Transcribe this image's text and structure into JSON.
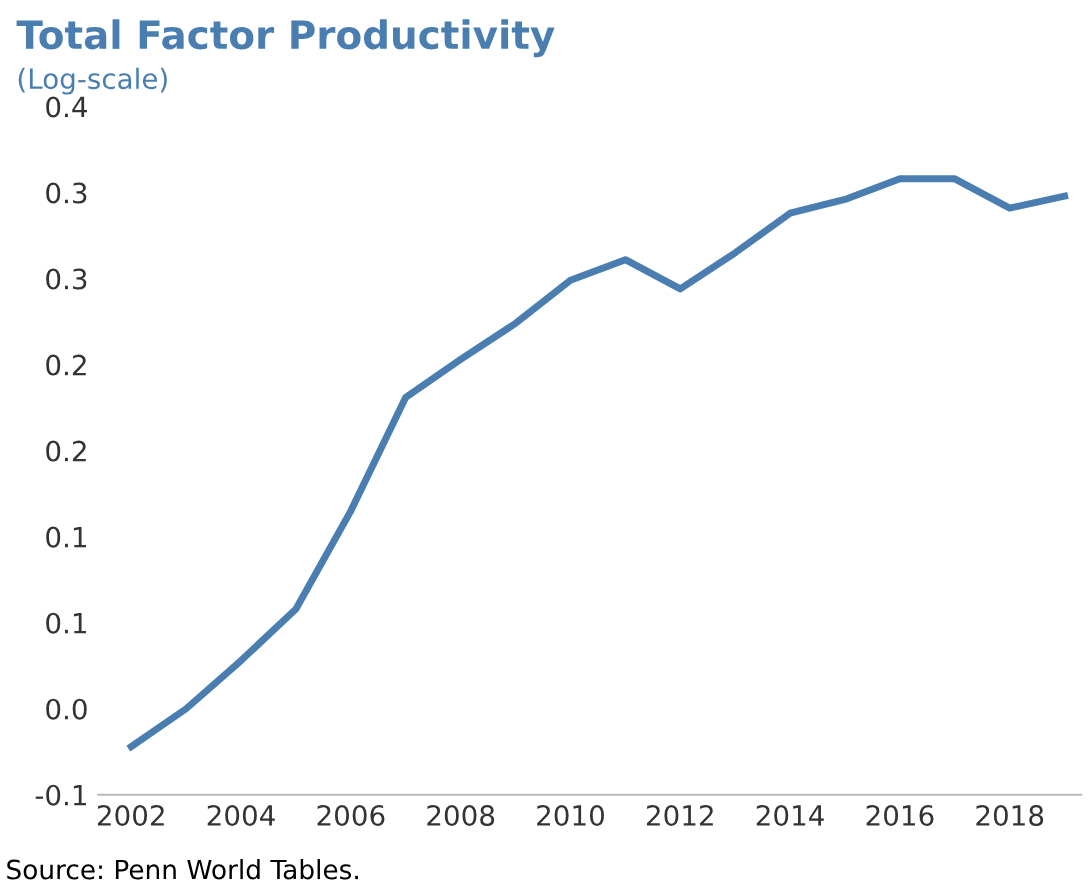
{
  "chart_data": {
    "type": "line",
    "title": "Total Factor Productivity",
    "subtitle": "(Log-scale)",
    "x": [
      2002,
      2003,
      2004,
      2005,
      2006,
      2007,
      2008,
      2009,
      2010,
      2011,
      2012,
      2013,
      2014,
      2015,
      2016,
      2017,
      2018,
      2019
    ],
    "series": [
      {
        "color": "#4a7eb0",
        "values": [
          -0.022,
          0.0,
          0.028,
          0.058,
          0.115,
          0.181,
          0.203,
          0.224,
          0.249,
          0.261,
          0.244,
          0.265,
          0.288,
          0.296,
          0.308,
          0.308,
          0.291,
          0.298
        ]
      }
    ],
    "xlim": [
      2001.4,
      2019.3
    ],
    "xticks": [
      2002,
      2004,
      2006,
      2008,
      2010,
      2012,
      2014,
      2016,
      2018
    ],
    "ylim": [
      -0.05,
      0.35
    ],
    "yticks": [
      {
        "value": -0.05,
        "label": "-0.1"
      },
      {
        "value": 0.0,
        "label": "0.0"
      },
      {
        "value": 0.05,
        "label": "0.1"
      },
      {
        "value": 0.1,
        "label": "0.1"
      },
      {
        "value": 0.15,
        "label": "0.2"
      },
      {
        "value": 0.2,
        "label": "0.2"
      },
      {
        "value": 0.25,
        "label": "0.3"
      },
      {
        "value": 0.3,
        "label": "0.3"
      },
      {
        "value": 0.35,
        "label": "0.4"
      }
    ],
    "annotations": [
      "Source: Penn World Tables."
    ],
    "marker": "none",
    "line_style": "solid"
  }
}
